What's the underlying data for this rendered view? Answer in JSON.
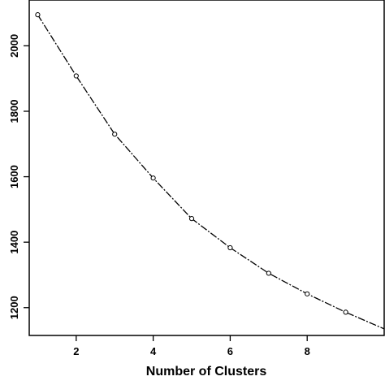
{
  "chart_data": {
    "type": "line",
    "title": "",
    "xlabel": "Number of Clusters",
    "ylabel": "",
    "x": [
      1,
      2,
      3,
      4,
      5,
      6,
      7,
      8,
      9,
      10
    ],
    "series": [
      {
        "values": [
          2095,
          1908,
          1730,
          1596,
          1472,
          1383,
          1305,
          1242,
          1186,
          1135
        ]
      }
    ],
    "xlim": [
      0.78,
      10
    ],
    "ylim": [
      1115,
      2140
    ],
    "xticks": [
      2,
      4,
      6,
      8
    ],
    "yticks": [
      1200,
      1400,
      1600,
      1800,
      2000
    ],
    "markers": "open-circle",
    "line_style": "dash-dot",
    "grid": false,
    "legend": "none",
    "colors": {
      "line": "#000000",
      "background": "#ffffff"
    }
  }
}
